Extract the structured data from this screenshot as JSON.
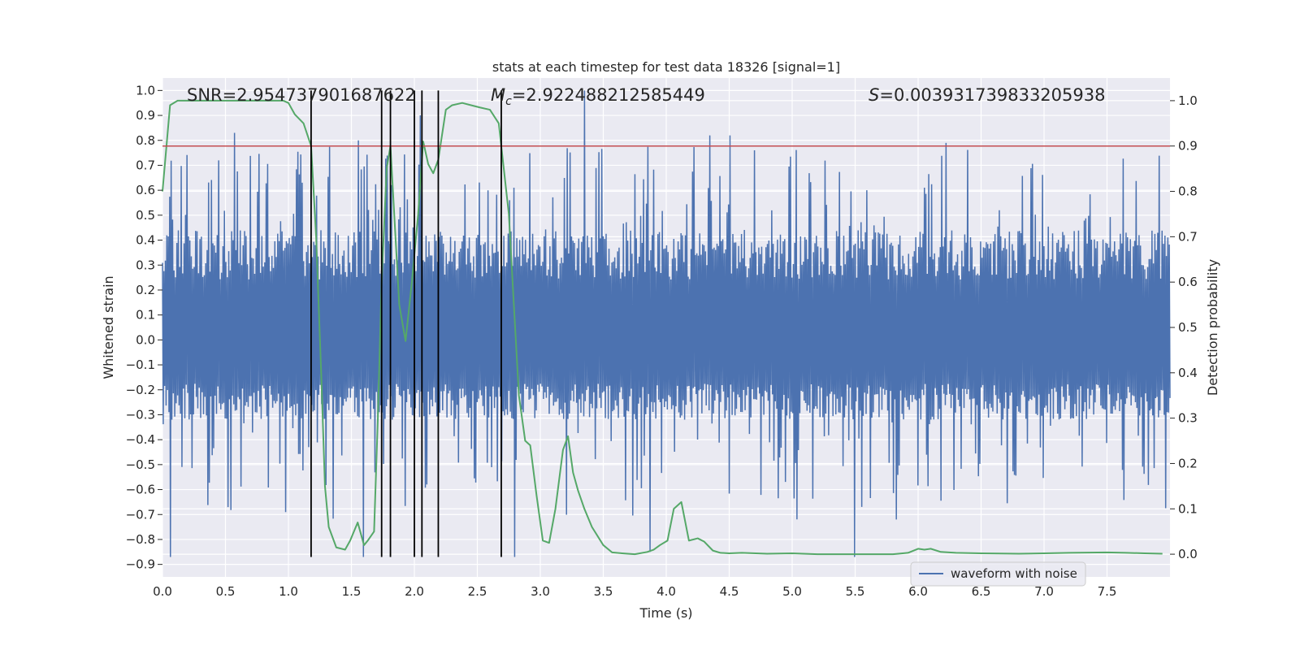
{
  "chart_data": {
    "type": "line",
    "title": "stats at each timestep for test data 18326 [signal=1]",
    "xlabel": "Time (s)",
    "ylabel": "Whitened strain",
    "y2label": "Detection probability",
    "xlim": [
      0.0,
      8.0
    ],
    "ylim": [
      -0.95,
      1.05
    ],
    "y2lim": [
      -0.05,
      1.05
    ],
    "x_ticks": [
      0.0,
      0.5,
      1.0,
      1.5,
      2.0,
      2.5,
      3.0,
      3.5,
      4.0,
      4.5,
      5.0,
      5.5,
      6.0,
      6.5,
      7.0,
      7.5
    ],
    "x_tick_labels": [
      "0.0",
      "0.5",
      "1.0",
      "1.5",
      "2.0",
      "2.5",
      "3.0",
      "3.5",
      "4.0",
      "4.5",
      "5.0",
      "5.5",
      "6.0",
      "6.5",
      "7.0",
      "7.5"
    ],
    "y_ticks": [
      1.0,
      0.9,
      0.8,
      0.7,
      0.6,
      0.5,
      0.4,
      0.3,
      0.2,
      0.1,
      0.0,
      -0.1,
      -0.2,
      -0.3,
      -0.4,
      -0.5,
      -0.6,
      -0.7,
      -0.8,
      -0.9
    ],
    "y_tick_labels": [
      "1.0",
      "0.9",
      "0.8",
      "0.7",
      "0.6",
      "0.5",
      "0.4",
      "0.3",
      "0.2",
      "0.1",
      "0.0",
      "−0.1",
      "−0.2",
      "−0.3",
      "−0.4",
      "−0.5",
      "−0.6",
      "−0.7",
      "−0.8",
      "−0.9"
    ],
    "y2_ticks": [
      1.0,
      0.9,
      0.8,
      0.7,
      0.6,
      0.5,
      0.4,
      0.3,
      0.2,
      0.1,
      0.0
    ],
    "y2_tick_labels": [
      "1.0",
      "0.9",
      "0.8",
      "0.7",
      "0.6",
      "0.5",
      "0.4",
      "0.3",
      "0.2",
      "0.1",
      "0.0"
    ],
    "grid": true,
    "legend": {
      "entries": [
        "waveform with noise"
      ],
      "placement": "lower-right"
    },
    "annotations": {
      "snr": "SNR=2.954737901687622",
      "mc_symbol": "M",
      "mc_sub": "c",
      "mc_value": "=2.922488212585449",
      "s_symbol": "S",
      "s_value": "=0.003931739833205938"
    },
    "threshold": {
      "y2": 0.9
    },
    "vlines": {
      "x": [
        1.18,
        1.74,
        1.81,
        2.0,
        2.06,
        2.19,
        2.69
      ],
      "ymin": -0.87,
      "ymax": 1.0
    },
    "waveform": {
      "name": "waveform with noise",
      "n_points": 1400,
      "seed": 18326,
      "typical_band": [
        -0.32,
        0.44
      ],
      "peaks": [
        {
          "x": 0.06,
          "y": -0.87
        },
        {
          "x": 0.57,
          "y": 0.83
        },
        {
          "x": 1.55,
          "y": 0.8
        },
        {
          "x": 1.6,
          "y": -0.87
        },
        {
          "x": 2.05,
          "y": 0.9
        },
        {
          "x": 2.8,
          "y": -0.87
        },
        {
          "x": 3.35,
          "y": 1.0
        },
        {
          "x": 3.87,
          "y": -0.85
        },
        {
          "x": 4.35,
          "y": 0.82
        },
        {
          "x": 4.51,
          "y": 0.82
        },
        {
          "x": 5.5,
          "y": -0.87
        },
        {
          "x": 6.22,
          "y": 0.79
        }
      ]
    },
    "probability": {
      "name": "detection probability",
      "x": [
        0.0,
        0.06,
        0.12,
        0.2,
        0.4,
        0.6,
        0.8,
        0.96,
        1.0,
        1.05,
        1.12,
        1.18,
        1.22,
        1.26,
        1.29,
        1.32,
        1.38,
        1.45,
        1.49,
        1.55,
        1.6,
        1.63,
        1.68,
        1.71,
        1.74,
        1.78,
        1.81,
        1.84,
        1.88,
        1.93,
        1.98,
        2.03,
        2.07,
        2.11,
        2.15,
        2.19,
        2.25,
        2.3,
        2.38,
        2.45,
        2.52,
        2.6,
        2.67,
        2.71,
        2.75,
        2.79,
        2.83,
        2.88,
        2.92,
        2.97,
        3.02,
        3.07,
        3.12,
        3.18,
        3.22,
        3.26,
        3.3,
        3.35,
        3.41,
        3.5,
        3.57,
        3.65,
        3.75,
        3.85,
        3.9,
        3.95,
        4.01,
        4.06,
        4.12,
        4.18,
        4.25,
        4.3,
        4.37,
        4.43,
        4.5,
        4.6,
        4.8,
        5.0,
        5.2,
        5.5,
        5.8,
        5.92,
        6.0,
        6.05,
        6.1,
        6.18,
        6.3,
        6.5,
        6.8,
        7.0,
        7.2,
        7.5,
        7.65,
        7.8,
        7.94
      ],
      "y": [
        0.8,
        0.99,
        1.0,
        1.0,
        1.0,
        1.0,
        1.0,
        1.0,
        0.995,
        0.97,
        0.95,
        0.9,
        0.7,
        0.4,
        0.15,
        0.06,
        0.015,
        0.01,
        0.03,
        0.07,
        0.02,
        0.03,
        0.05,
        0.3,
        0.6,
        0.85,
        0.9,
        0.75,
        0.55,
        0.47,
        0.6,
        0.75,
        0.91,
        0.86,
        0.84,
        0.87,
        0.98,
        0.99,
        0.995,
        0.99,
        0.985,
        0.98,
        0.95,
        0.85,
        0.75,
        0.55,
        0.35,
        0.25,
        0.24,
        0.13,
        0.03,
        0.025,
        0.1,
        0.23,
        0.26,
        0.18,
        0.14,
        0.1,
        0.06,
        0.02,
        0.004,
        0.002,
        0.0,
        0.005,
        0.01,
        0.02,
        0.03,
        0.1,
        0.115,
        0.03,
        0.035,
        0.028,
        0.008,
        0.003,
        0.002,
        0.003,
        0.001,
        0.002,
        0.0,
        0.0,
        0.0,
        0.003,
        0.012,
        0.01,
        0.012,
        0.005,
        0.003,
        0.002,
        0.001,
        0.002,
        0.003,
        0.004,
        0.003,
        0.002,
        0.001
      ]
    },
    "colors": {
      "waveform": "#4c72b0",
      "probability": "#55a868",
      "threshold": "#c44e52",
      "vline": "#000000",
      "axes_bg": "#eaeaf2",
      "grid": "#ffffff",
      "text": "#262626"
    }
  }
}
